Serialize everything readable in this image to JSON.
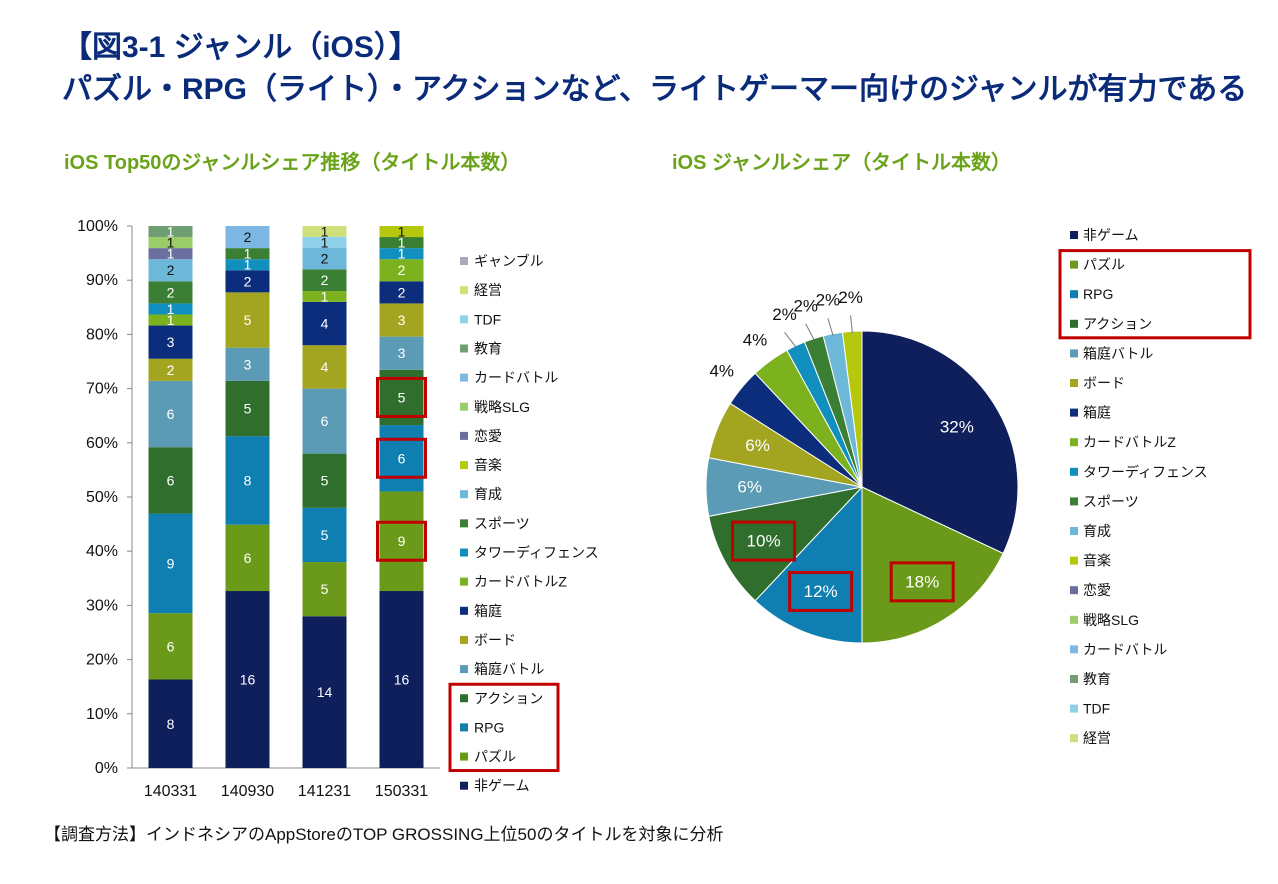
{
  "header": {
    "title_line1": "【図3-1 ジャンル（iOS）】",
    "title_line2": "パズル・RPG（ライト）・アクションなど、ライトゲーマー向けのジャンルが有力である"
  },
  "footer": {
    "text": "【調査方法】インドネシアのAppStoreのTOP GROSSING上位50のタイトルを対象に分析"
  },
  "chart_data": [
    {
      "type": "bar",
      "stacked": "percent",
      "title": "iOS Top50のジャンルシェア推移（タイトル本数）",
      "categories": [
        "140331",
        "140930",
        "141231",
        "150331"
      ],
      "ylim": [
        0,
        100
      ],
      "yticks": [
        "0%",
        "10%",
        "20%",
        "30%",
        "40%",
        "50%",
        "60%",
        "70%",
        "80%",
        "90%",
        "100%"
      ],
      "legend_position": "right",
      "series": [
        {
          "name": "非ゲーム",
          "color": "#0f1f5c",
          "values": [
            8,
            16,
            14,
            16
          ]
        },
        {
          "name": "パズル",
          "color": "#6b9a1a",
          "values": [
            6,
            6,
            5,
            9
          ]
        },
        {
          "name": "RPG",
          "color": "#0e7fb0",
          "values": [
            9,
            8,
            5,
            6
          ]
        },
        {
          "name": "アクション",
          "color": "#2f6e2c",
          "values": [
            6,
            5,
            5,
            5
          ]
        },
        {
          "name": "箱庭バトル",
          "color": "#5b9bb5",
          "values": [
            6,
            3,
            6,
            3
          ]
        },
        {
          "name": "ボード",
          "color": "#a3a520",
          "values": [
            2,
            5,
            4,
            3
          ]
        },
        {
          "name": "箱庭",
          "color": "#0b2d7c",
          "values": [
            3,
            2,
            4,
            2
          ]
        },
        {
          "name": "カードバトルZ",
          "color": "#7bb21e",
          "values": [
            1,
            0,
            1,
            2
          ]
        },
        {
          "name": "タワーディフェンス",
          "color": "#1190c0",
          "values": [
            1,
            1,
            0,
            1
          ]
        },
        {
          "name": "スポーツ",
          "color": "#3a7f33",
          "values": [
            2,
            1,
            2,
            1
          ]
        },
        {
          "name": "育成",
          "color": "#6db8d8",
          "values": [
            2,
            0,
            2,
            0
          ]
        },
        {
          "name": "音楽",
          "color": "#b5c80e",
          "values": [
            0,
            0,
            0,
            1
          ]
        },
        {
          "name": "恋愛",
          "color": "#6a6fa0",
          "values": [
            1,
            0,
            0,
            0
          ]
        },
        {
          "name": "戦略SLG",
          "color": "#9acd68",
          "values": [
            1,
            0,
            0,
            0
          ]
        },
        {
          "name": "カードバトル",
          "color": "#7db7e3",
          "values": [
            0,
            2,
            0,
            0
          ]
        },
        {
          "name": "教育",
          "color": "#6e9e72",
          "values": [
            1,
            0,
            0,
            0
          ]
        },
        {
          "name": "TDF",
          "color": "#8fd0ea",
          "values": [
            0,
            0,
            1,
            0
          ]
        },
        {
          "name": "経営",
          "color": "#cfe07a",
          "values": [
            0,
            0,
            1,
            0
          ]
        },
        {
          "name": "ギャンブル",
          "color": "#a6aab8",
          "values": [
            0,
            0,
            0,
            0
          ]
        }
      ],
      "highlighted_legend": [
        "アクション",
        "RPG",
        "パズル"
      ],
      "highlighted_segments": [
        {
          "category": "150331",
          "series": "アクション"
        },
        {
          "category": "150331",
          "series": "RPG"
        },
        {
          "category": "150331",
          "series": "パズル"
        }
      ]
    },
    {
      "type": "pie",
      "title": "iOS ジャンルシェア（タイトル本数）",
      "legend_position": "right",
      "slices": [
        {
          "name": "非ゲーム",
          "value": 32,
          "label": "32%",
          "color": "#0f1f5c",
          "highlight": false
        },
        {
          "name": "パズル",
          "value": 18,
          "label": "18%",
          "color": "#6b9a1a",
          "highlight": true
        },
        {
          "name": "RPG",
          "value": 12,
          "label": "12%",
          "color": "#0e7fb0",
          "highlight": true
        },
        {
          "name": "アクション",
          "value": 10,
          "label": "10%",
          "color": "#2f6e2c",
          "highlight": true
        },
        {
          "name": "箱庭バトル",
          "value": 6,
          "label": "6%",
          "color": "#5b9bb5",
          "highlight": false
        },
        {
          "name": "ボード",
          "value": 6,
          "label": "6%",
          "color": "#a3a520",
          "highlight": false
        },
        {
          "name": "箱庭",
          "value": 4,
          "label": "4%",
          "color": "#0b2d7c",
          "highlight": false
        },
        {
          "name": "カードバトルZ",
          "value": 4,
          "label": "4%",
          "color": "#7bb21e",
          "highlight": false
        },
        {
          "name": "タワーディフェンス",
          "value": 2,
          "label": "2%",
          "color": "#1190c0",
          "highlight": false
        },
        {
          "name": "スポーツ",
          "value": 2,
          "label": "2%",
          "color": "#3a7f33",
          "highlight": false
        },
        {
          "name": "育成",
          "value": 2,
          "label": "2%",
          "color": "#6db8d8",
          "highlight": false
        },
        {
          "name": "音楽",
          "value": 2,
          "label": "2%",
          "color": "#b5c80e",
          "highlight": false
        }
      ],
      "legend": [
        "非ゲーム",
        "パズル",
        "RPG",
        "アクション",
        "箱庭バトル",
        "ボード",
        "箱庭",
        "カードバトルZ",
        "タワーディフェンス",
        "スポーツ",
        "育成",
        "音楽",
        "恋愛",
        "戦略SLG",
        "カードバトル",
        "教育",
        "TDF",
        "経営"
      ],
      "legend_colors": [
        "#0f1f5c",
        "#6b9a1a",
        "#0e7fb0",
        "#2f6e2c",
        "#5b9bb5",
        "#a3a520",
        "#0b2d7c",
        "#7bb21e",
        "#1190c0",
        "#3a7f33",
        "#6db8d8",
        "#b5c80e",
        "#6a6fa0",
        "#9acd68",
        "#7db7e3",
        "#6e9e72",
        "#8fd0ea",
        "#cfe07a"
      ],
      "highlighted_legend": [
        "パズル",
        "RPG",
        "アクション"
      ]
    }
  ],
  "colors": {
    "title": "#0a2a7a",
    "subtitle": "#6aa31a",
    "highlight": "#c00000"
  }
}
